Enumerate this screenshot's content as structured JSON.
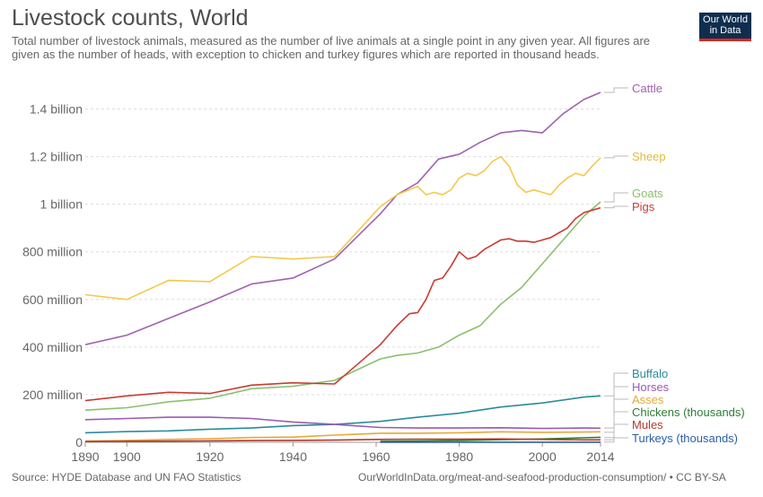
{
  "header": {
    "title": "Livestock counts, World",
    "subtitle": "Total number of livestock animals, measured as the number of live animals at a single point in any given year. All figures are given as the number of heads, with exception to chicken and turkey figures which are reported in thousand heads."
  },
  "logo": {
    "line1": "Our World",
    "line2": "in Data"
  },
  "footer": {
    "source": "Source: HYDE Database and UN FAO Statistics",
    "url": "OurWorldInData.org/meat-and-seafood-production-consumption/ • CC BY-SA"
  },
  "chart_data": {
    "type": "line",
    "title": "Livestock counts, World",
    "xlabel": "",
    "ylabel": "",
    "xlim": [
      1890,
      2014
    ],
    "ylim": [
      0,
      1500
    ],
    "y_unit": "million",
    "grid": true,
    "legend": "right",
    "x_ticks": [
      {
        "value": 1890,
        "label": "1890"
      },
      {
        "value": 1900,
        "label": "1900"
      },
      {
        "value": 1920,
        "label": "1920"
      },
      {
        "value": 1940,
        "label": "1940"
      },
      {
        "value": 1960,
        "label": "1960"
      },
      {
        "value": 1980,
        "label": "1980"
      },
      {
        "value": 2000,
        "label": "2000"
      },
      {
        "value": 2014,
        "label": "2014"
      }
    ],
    "y_ticks": [
      {
        "value": 0,
        "label": "0"
      },
      {
        "value": 200,
        "label": "200 million"
      },
      {
        "value": 400,
        "label": "400 million"
      },
      {
        "value": 600,
        "label": "600 million"
      },
      {
        "value": 800,
        "label": "800 million"
      },
      {
        "value": 1000,
        "label": "1 billion"
      },
      {
        "value": 1200,
        "label": "1.2 billion"
      },
      {
        "value": 1400,
        "label": "1.4 billion"
      }
    ],
    "series": [
      {
        "name": "Cattle",
        "color": "#a062b0",
        "label_value": 1470,
        "x": [
          1890,
          1900,
          1910,
          1920,
          1930,
          1940,
          1950,
          1961,
          1965,
          1970,
          1975,
          1980,
          1985,
          1990,
          1995,
          2000,
          2005,
          2010,
          2014
        ],
        "y": [
          410,
          450,
          520,
          590,
          665,
          690,
          770,
          960,
          1040,
          1090,
          1190,
          1210,
          1260,
          1300,
          1310,
          1300,
          1380,
          1440,
          1470
        ]
      },
      {
        "name": "Sheep",
        "color": "#f2c94c",
        "label_value": 1195,
        "x": [
          1890,
          1900,
          1910,
          1920,
          1930,
          1940,
          1950,
          1961,
          1965,
          1970,
          1972,
          1974,
          1976,
          1978,
          1980,
          1982,
          1984,
          1986,
          1988,
          1990,
          1992,
          1994,
          1996,
          1998,
          2000,
          2002,
          2004,
          2006,
          2008,
          2010,
          2012,
          2014
        ],
        "y": [
          620,
          600,
          680,
          675,
          780,
          770,
          780,
          990,
          1040,
          1075,
          1040,
          1050,
          1040,
          1060,
          1110,
          1130,
          1120,
          1140,
          1180,
          1200,
          1160,
          1080,
          1050,
          1060,
          1050,
          1040,
          1080,
          1110,
          1130,
          1120,
          1160,
          1195
        ],
        "label_color": "#e2b93c"
      },
      {
        "name": "Goats",
        "color": "#8cbf6d",
        "label_value": 1010,
        "x": [
          1890,
          1900,
          1910,
          1920,
          1930,
          1940,
          1950,
          1961,
          1965,
          1970,
          1975,
          1980,
          1985,
          1990,
          1995,
          2000,
          2005,
          2010,
          2014
        ],
        "y": [
          135,
          145,
          170,
          185,
          225,
          235,
          260,
          350,
          365,
          375,
          400,
          450,
          490,
          580,
          650,
          750,
          850,
          950,
          1010
        ]
      },
      {
        "name": "Pigs",
        "color": "#c93b33",
        "label_value": 985,
        "x": [
          1890,
          1900,
          1910,
          1920,
          1930,
          1940,
          1950,
          1961,
          1965,
          1968,
          1970,
          1972,
          1974,
          1976,
          1978,
          1980,
          1982,
          1984,
          1986,
          1988,
          1990,
          1992,
          1994,
          1996,
          1998,
          2000,
          2002,
          2004,
          2006,
          2008,
          2010,
          2012,
          2014
        ],
        "y": [
          175,
          195,
          210,
          205,
          240,
          250,
          245,
          410,
          490,
          540,
          545,
          600,
          680,
          690,
          740,
          800,
          770,
          780,
          810,
          830,
          850,
          855,
          845,
          845,
          840,
          850,
          860,
          880,
          900,
          940,
          965,
          975,
          985
        ]
      },
      {
        "name": "Buffalo",
        "color": "#2b8b9b",
        "label_value": 195,
        "x": [
          1890,
          1900,
          1910,
          1920,
          1930,
          1940,
          1950,
          1961,
          1970,
          1980,
          1990,
          2000,
          2010,
          2014
        ],
        "y": [
          40,
          45,
          48,
          55,
          60,
          70,
          75,
          88,
          105,
          122,
          148,
          165,
          190,
          195
        ]
      },
      {
        "name": "Horses",
        "color": "#9b59b6",
        "label_value": 60,
        "x": [
          1890,
          1900,
          1910,
          1920,
          1930,
          1940,
          1950,
          1961,
          1970,
          1980,
          1990,
          2000,
          2010,
          2014
        ],
        "y": [
          95,
          100,
          105,
          105,
          100,
          85,
          75,
          62,
          60,
          60,
          61,
          58,
          60,
          59
        ]
      },
      {
        "name": "Asses",
        "color": "#e5a93a",
        "label_value": 42,
        "x": [
          1890,
          1900,
          1910,
          1920,
          1930,
          1940,
          1950,
          1961,
          1970,
          1980,
          1990,
          2000,
          2010,
          2014
        ],
        "y": [
          5,
          8,
          12,
          15,
          20,
          22,
          30,
          38,
          38,
          40,
          44,
          42,
          43,
          44
        ]
      },
      {
        "name": "Chickens (thousands)",
        "color": "#2e7d32",
        "label_value": 20,
        "x": [
          1961,
          1970,
          1980,
          1990,
          2000,
          2010,
          2014
        ],
        "y": [
          4,
          5,
          7,
          11,
          14,
          19,
          21
        ]
      },
      {
        "name": "Mules",
        "color": "#b03a2e",
        "label_value": 10,
        "x": [
          1890,
          1900,
          1910,
          1920,
          1930,
          1940,
          1950,
          1961,
          1970,
          1980,
          1990,
          2000,
          2010,
          2014
        ],
        "y": [
          3,
          4,
          5,
          6,
          7,
          8,
          9,
          12,
          13,
          13,
          14,
          12,
          10,
          10
        ]
      },
      {
        "name": "Turkeys (thousands)",
        "color": "#2c5ea8",
        "label_value": 1,
        "x": [
          1961,
          1970,
          1980,
          1990,
          2000,
          2010,
          2014
        ],
        "y": [
          0.1,
          0.15,
          0.2,
          0.3,
          0.4,
          0.45,
          0.47
        ]
      }
    ]
  }
}
